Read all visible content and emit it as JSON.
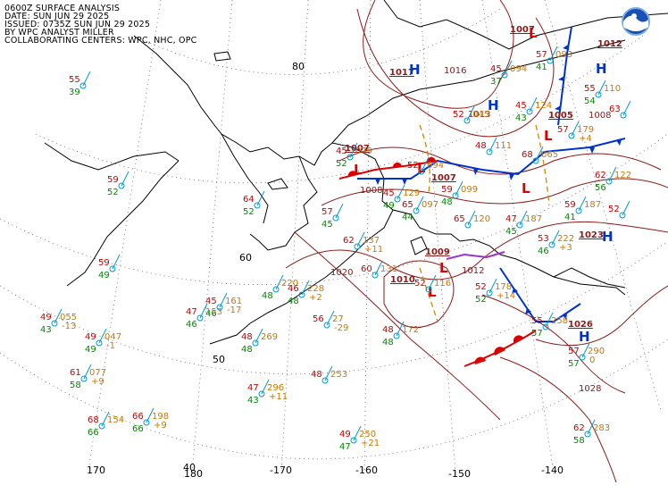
{
  "header": {
    "line1": "0600Z SURFACE ANALYSIS",
    "line2": "DATE: SUN JUN 29 2025",
    "line3": "ISSUED: 0735Z SUN JUN 29 2025",
    "line4": "BY WPC ANALYST MILLER",
    "line5": "COLLABORATING CENTERS: WPC, NHC, OPC"
  },
  "logo": {
    "name": "noaa-logo",
    "text": "NOAA"
  },
  "colors": {
    "isobar": "#8b1a1a",
    "high": "#0033cc",
    "low": "#dd0000",
    "cold_front": "#0033cc",
    "warm_front": "#dd0000",
    "trough": "#cc8800",
    "temp": "#cc0000",
    "dewpoint": "#008800",
    "pressure": "#cc7700",
    "station": "#0099cc",
    "coast": "#000000",
    "graticule": "#555555"
  },
  "graticule": {
    "lat_labels": [
      "80",
      "60",
      "50",
      "40"
    ],
    "lon_labels": [
      "170",
      "180",
      "-170",
      "-160",
      "-150",
      "-140"
    ]
  },
  "pressure_centers": [
    {
      "type": "H",
      "value": "1017"
    },
    {
      "type": "H",
      "value": "1012"
    },
    {
      "type": "L",
      "value": "1007"
    },
    {
      "type": "L",
      "value": "1005"
    },
    {
      "type": "L",
      "value": "1007"
    },
    {
      "type": "L",
      "value": "1007"
    },
    {
      "type": "L",
      "value": "1009"
    },
    {
      "type": "L",
      "value": "1010"
    },
    {
      "type": "H",
      "value": "1023"
    },
    {
      "type": "H",
      "value": "1026"
    },
    {
      "type": "L",
      "value": ""
    },
    {
      "type": "H",
      "value": ""
    }
  ],
  "isobar_labels": [
    "1016",
    "1013",
    "1008",
    "1020",
    "1012",
    "1028",
    "1008"
  ],
  "stations": [
    {
      "t": "55",
      "td": "39",
      "p": ""
    },
    {
      "t": "59",
      "td": "52",
      "p": ""
    },
    {
      "t": "64",
      "td": "52",
      "p": ""
    },
    {
      "t": "59",
      "td": "49",
      "p": ""
    },
    {
      "t": "49",
      "td": "43",
      "p": "055",
      "tend": "-13"
    },
    {
      "t": "49",
      "td": "49",
      "p": "047",
      "tend": "-1"
    },
    {
      "t": "61",
      "td": "58",
      "p": "077",
      "tend": "+9"
    },
    {
      "t": "68",
      "td": "66",
      "p": "154"
    },
    {
      "t": "66",
      "td": "66",
      "p": "198",
      "tend": "+9"
    },
    {
      "t": "45",
      "td": "46",
      "p": "161",
      "tend": "-17"
    },
    {
      "t": "47",
      "td": "46",
      "p": "153"
    },
    {
      "t": "",
      "td": "48",
      "p": "220"
    },
    {
      "t": "46",
      "td": "48",
      "p": "228",
      "tend": "+2"
    },
    {
      "t": "48",
      "td": "48",
      "p": "269"
    },
    {
      "t": "56",
      "td": "",
      "p": "27",
      "tend": "-29"
    },
    {
      "t": "47",
      "td": "43",
      "p": "296",
      "tend": "+11"
    },
    {
      "t": "48",
      "td": "",
      "p": "253"
    },
    {
      "t": "49",
      "td": "47",
      "p": "250",
      "tend": "+21"
    },
    {
      "t": "48",
      "td": "48",
      "p": "172"
    },
    {
      "t": "62",
      "td": "",
      "p": "137",
      "tend": "+11"
    },
    {
      "t": "60",
      "td": "",
      "p": "131"
    },
    {
      "t": "52",
      "td": "",
      "p": "116"
    },
    {
      "t": "65",
      "td": "44",
      "p": "097"
    },
    {
      "t": "59",
      "td": "48",
      "p": "099"
    },
    {
      "t": "65",
      "td": "",
      "p": "120"
    },
    {
      "t": "52",
      "td": "52",
      "p": "178",
      "tend": "+14"
    },
    {
      "t": "55",
      "td": "57",
      "p": "258"
    },
    {
      "t": "57",
      "td": "57",
      "p": "290",
      "tend": "0"
    },
    {
      "t": "62",
      "td": "58",
      "p": "283"
    },
    {
      "t": "47",
      "td": "45",
      "p": "187"
    },
    {
      "t": "53",
      "td": "46",
      "p": "222",
      "tend": "+3"
    },
    {
      "t": "59",
      "td": "41",
      "p": "187"
    },
    {
      "t": "62",
      "td": "56",
      "p": "122"
    },
    {
      "t": "52",
      "td": "",
      "p": ""
    },
    {
      "t": "48",
      "td": "",
      "p": "111"
    },
    {
      "t": "68",
      "td": "",
      "p": "065"
    },
    {
      "t": "57",
      "td": "",
      "p": "179",
      "tend": "+4"
    },
    {
      "t": "55",
      "td": "54",
      "p": "110"
    },
    {
      "t": "63",
      "td": "",
      "p": ""
    },
    {
      "t": "45",
      "td": "37",
      "p": "094"
    },
    {
      "t": "52",
      "td": "",
      "p": "045"
    },
    {
      "t": "45",
      "td": "43",
      "p": "124"
    },
    {
      "t": "57",
      "td": "41",
      "p": "093"
    },
    {
      "t": "52",
      "td": "",
      "p": "094"
    },
    {
      "t": "57",
      "td": "45",
      "p": ""
    },
    {
      "t": "45",
      "td": "52",
      "p": "079"
    },
    {
      "t": "45",
      "td": "49",
      "p": "129"
    }
  ]
}
